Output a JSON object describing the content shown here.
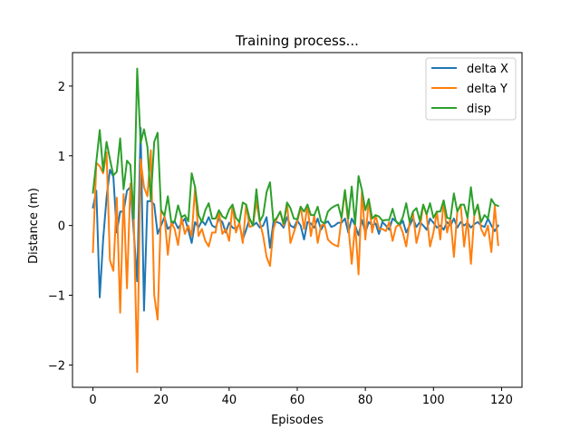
{
  "chart_data": {
    "type": "line",
    "title": "Training process...",
    "xlabel": "Episodes",
    "ylabel": "Distance (m)",
    "xlim": [
      -6,
      126
    ],
    "ylim": [
      -2.32,
      2.48
    ],
    "xticks": [
      0,
      20,
      40,
      60,
      80,
      100,
      120
    ],
    "yticks": [
      -2,
      -1,
      0,
      1,
      2
    ],
    "xtick_labels": [
      "0",
      "20",
      "40",
      "60",
      "80",
      "100",
      "120"
    ],
    "ytick_labels": [
      "−2",
      "−1",
      "0",
      "1",
      "2"
    ],
    "grid": false,
    "legend_position": "top-right",
    "series": [
      {
        "name": "delta X",
        "color": "#1f77b4",
        "values": [
          0.26,
          0.5,
          -1.03,
          -0.2,
          0.4,
          0.8,
          0.7,
          -0.1,
          0.2,
          0.2,
          0.5,
          0.55,
          -0.1,
          -0.8,
          1.4,
          -1.22,
          0.35,
          0.35,
          0.3,
          -0.12,
          0.0,
          0.12,
          -0.05,
          0.0,
          0.06,
          -0.04,
          0.03,
          0.1,
          -0.06,
          -0.25,
          0.05,
          -0.03,
          0.07,
          0.01,
          0.12,
          0.0,
          -0.03,
          0.1,
          0.05,
          -0.1,
          0.04,
          -0.03,
          -0.05,
          0.02,
          -0.2,
          -0.06,
          0.1,
          0.0,
          0.04,
          -0.03,
          0.0,
          0.12,
          -0.32,
          0.05,
          0.05,
          0.03,
          -0.03,
          0.12,
          0.0,
          -0.03,
          0.07,
          0.0,
          -0.2,
          0.05,
          0.03,
          -0.03,
          0.1,
          -0.06,
          0.03,
          0.06,
          -0.02,
          0.0,
          0.04,
          0.04,
          0.1,
          -0.1,
          0.1,
          0.0,
          -0.14,
          0.08,
          -0.1,
          0.05,
          0.0,
          0.03,
          -0.12,
          0.05,
          0.0,
          -0.06,
          0.1,
          0.06,
          0.0,
          0.07,
          -0.1,
          0.0,
          0.1,
          -0.02,
          0.05,
          0.0,
          -0.06,
          0.1,
          0.04,
          -0.03,
          0.0,
          -0.06,
          0.05,
          0.0,
          0.1,
          -0.03,
          0.05,
          0.0,
          0.04,
          -0.03,
          0.02,
          0.05,
          0.0,
          -0.02,
          0.1,
          0.0,
          -0.08,
          0.0
        ]
      },
      {
        "name": "delta Y",
        "color": "#ff7f0e",
        "values": [
          -0.38,
          0.9,
          0.85,
          0.75,
          1.05,
          -0.5,
          -0.65,
          0.4,
          -1.25,
          0.45,
          -0.9,
          0.6,
          0.1,
          -2.1,
          0.95,
          0.55,
          0.42,
          1.08,
          -1.0,
          -1.35,
          0.22,
          0.15,
          -0.42,
          0.05,
          -0.05,
          -0.28,
          0.12,
          -0.12,
          0.0,
          -0.15,
          0.55,
          -0.15,
          -0.05,
          -0.22,
          -0.3,
          -0.1,
          -0.1,
          0.2,
          -0.12,
          -0.05,
          -0.22,
          0.3,
          -0.1,
          0.05,
          -0.25,
          0.3,
          -0.02,
          0.0,
          0.35,
          0.05,
          -0.15,
          -0.45,
          -0.58,
          -0.05,
          0.1,
          0.2,
          0.0,
          0.32,
          -0.25,
          -0.1,
          0.05,
          0.27,
          -0.05,
          0.3,
          -0.15,
          0.15,
          -0.25,
          0.0,
          0.02,
          -0.2,
          -0.25,
          -0.28,
          -0.3,
          0.1,
          0.5,
          0.0,
          -0.55,
          0.02,
          -0.7,
          0.5,
          -0.2,
          0.38,
          -0.1,
          0.15,
          -0.05,
          -0.05,
          -0.08,
          0.05,
          -0.22,
          -0.02,
          0.02,
          -0.1,
          -0.3,
          0.05,
          0.18,
          -0.25,
          -0.05,
          0.3,
          0.15,
          -0.3,
          -0.1,
          0.2,
          -0.2,
          0.35,
          -0.1,
          0.1,
          -0.45,
          0.2,
          0.3,
          -0.3,
          0.1,
          -0.55,
          0.15,
          0.3,
          -0.05,
          -0.15,
          0.0,
          -0.38,
          0.28,
          -0.28
        ]
      },
      {
        "name": "disp",
        "color": "#2ca02c",
        "values": [
          0.47,
          0.92,
          1.37,
          0.78,
          1.2,
          0.95,
          0.72,
          0.77,
          1.25,
          0.52,
          0.93,
          0.87,
          0.1,
          2.25,
          1.18,
          1.38,
          1.13,
          0.37,
          1.2,
          1.33,
          0.22,
          0.14,
          0.42,
          0.05,
          0.06,
          0.29,
          0.12,
          0.15,
          0.06,
          0.75,
          0.55,
          0.15,
          0.05,
          0.22,
          0.32,
          0.1,
          0.1,
          0.22,
          0.13,
          0.1,
          0.23,
          0.3,
          0.11,
          0.05,
          0.33,
          0.3,
          0.1,
          0.0,
          0.52,
          0.06,
          0.15,
          0.48,
          0.62,
          0.06,
          0.11,
          0.2,
          0.03,
          0.33,
          0.25,
          0.1,
          0.09,
          0.27,
          0.2,
          0.3,
          0.15,
          0.15,
          0.27,
          0.06,
          0.03,
          0.2,
          0.25,
          0.28,
          0.3,
          0.11,
          0.51,
          0.1,
          0.56,
          0.02,
          0.71,
          0.51,
          0.22,
          0.38,
          0.1,
          0.15,
          0.13,
          0.07,
          0.08,
          0.08,
          0.24,
          0.06,
          0.02,
          0.12,
          0.32,
          0.05,
          0.2,
          0.25,
          0.07,
          0.3,
          0.16,
          0.32,
          0.11,
          0.2,
          0.2,
          0.36,
          0.11,
          0.1,
          0.46,
          0.2,
          0.3,
          0.3,
          0.11,
          0.55,
          0.15,
          0.3,
          0.05,
          0.15,
          0.1,
          0.38,
          0.3,
          0.28
        ]
      }
    ]
  }
}
